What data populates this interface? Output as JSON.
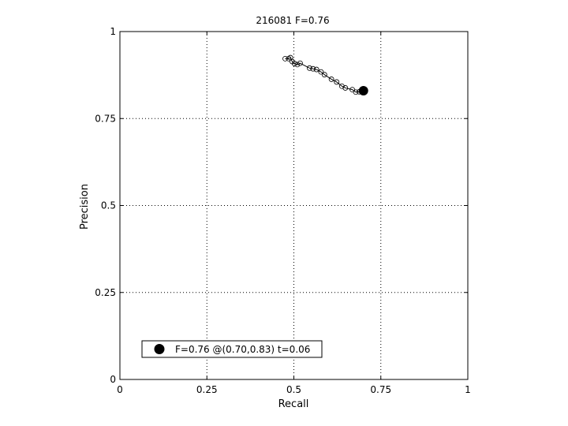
{
  "chart_data": {
    "type": "scatter",
    "title": "216081 F=0.76",
    "xlabel": "Recall",
    "ylabel": "Precision",
    "xlim": [
      0,
      1
    ],
    "ylim": [
      0,
      1
    ],
    "xticks": [
      0,
      0.25,
      0.5,
      0.75,
      1
    ],
    "xtick_labels": [
      "0",
      "0.25",
      "0.5",
      "0.75",
      "1"
    ],
    "yticks": [
      0,
      0.25,
      0.5,
      0.75,
      1
    ],
    "ytick_labels": [
      "0",
      "0.25",
      "0.5",
      "0.75",
      "1"
    ],
    "grid": true,
    "legend": {
      "position": "bottom-left",
      "text": "F=0.76 @(0.70,0.83) t=0.06"
    },
    "series": [
      {
        "marker": "open-circle",
        "line": true,
        "points": [
          [
            0.475,
            0.922
          ],
          [
            0.485,
            0.922
          ],
          [
            0.49,
            0.925
          ],
          [
            0.495,
            0.914
          ],
          [
            0.502,
            0.908
          ],
          [
            0.51,
            0.905
          ],
          [
            0.518,
            0.909
          ],
          [
            0.545,
            0.895
          ],
          [
            0.555,
            0.893
          ],
          [
            0.565,
            0.891
          ],
          [
            0.578,
            0.884
          ],
          [
            0.588,
            0.876
          ],
          [
            0.608,
            0.863
          ],
          [
            0.623,
            0.855
          ],
          [
            0.638,
            0.843
          ],
          [
            0.648,
            0.838
          ],
          [
            0.668,
            0.833
          ],
          [
            0.678,
            0.826
          ],
          [
            0.688,
            0.827
          ],
          [
            0.695,
            0.828
          ]
        ]
      },
      {
        "marker": "filled-circle",
        "line": false,
        "points": [
          [
            0.7,
            0.83
          ]
        ]
      }
    ]
  }
}
